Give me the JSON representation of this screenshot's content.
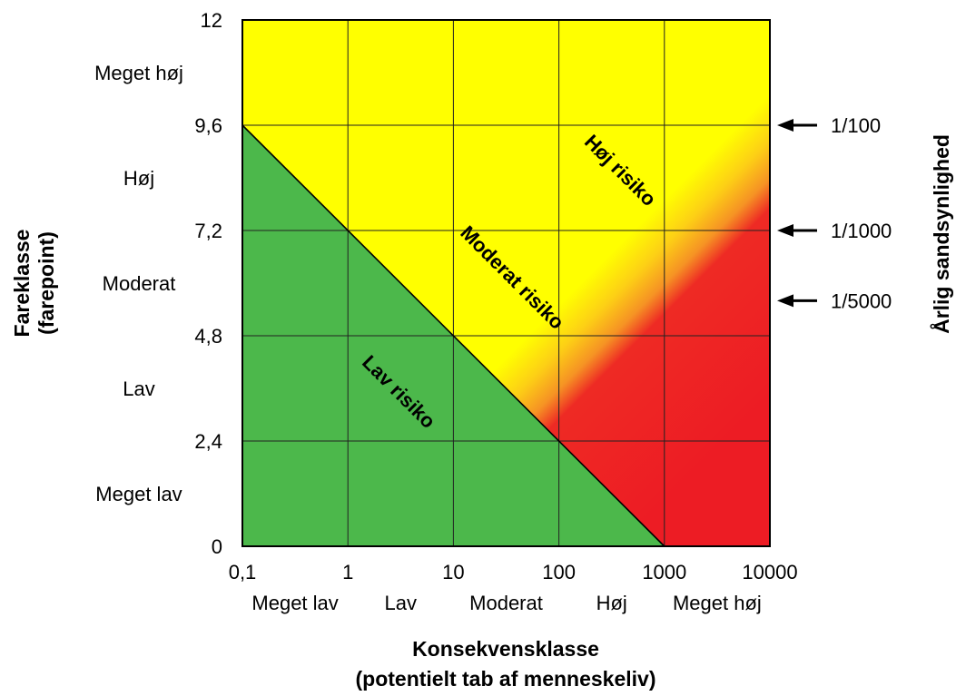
{
  "chart_data": {
    "type": "heatmap",
    "x_scale": "log",
    "xlim": [
      0.1,
      10000
    ],
    "ylim": [
      0,
      12
    ],
    "x_ticks": [
      "0,1",
      "1",
      "10",
      "100",
      "1000",
      "10000"
    ],
    "x_tick_values": [
      0.1,
      1,
      10,
      100,
      1000,
      10000
    ],
    "y_ticks": [
      "12",
      "9,6",
      "7,2",
      "4,8",
      "2,4",
      "0"
    ],
    "y_tick_values": [
      12,
      9.6,
      7.2,
      4.8,
      2.4,
      0
    ],
    "x_classes": [
      "Meget lav",
      "Lav",
      "Moderat",
      "Høj",
      "Meget høj"
    ],
    "y_classes": [
      "Meget høj",
      "Høj",
      "Moderat",
      "Lav",
      "Meget lav"
    ],
    "y_class_mid_values": [
      10.8,
      8.4,
      6.0,
      3.6,
      1.2
    ],
    "xlabel_line1": "Konsekvensklasse",
    "xlabel_line2": "(potentielt tab af menneskeliv)",
    "ylabel_line1": "Fareklasse",
    "ylabel_line2": "(farepoint)",
    "right_axis_label": "Årlig sandsynlighed",
    "right_markers": [
      {
        "label": "1/100",
        "y": 9.6
      },
      {
        "label": "1/1000",
        "y": 7.2
      },
      {
        "label": "1/5000",
        "y": 5.6
      }
    ],
    "zones": [
      {
        "name": "Lav risiko",
        "color": "#4cb84b"
      },
      {
        "name": "Moderat risiko",
        "color": "#ffff00"
      },
      {
        "name": "Høj risiko",
        "color": "#ed1c24"
      }
    ],
    "boundary_line": {
      "from": [
        0.1,
        9.6
      ],
      "to": [
        1000,
        0
      ]
    },
    "grid": true
  }
}
